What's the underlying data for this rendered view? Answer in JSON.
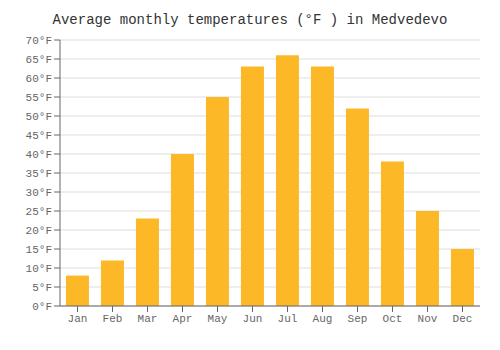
{
  "chart_data": {
    "type": "bar",
    "title": "Average monthly temperatures (°F ) in Medvedevo",
    "categories": [
      "Jan",
      "Feb",
      "Mar",
      "Apr",
      "May",
      "Jun",
      "Jul",
      "Aug",
      "Sep",
      "Oct",
      "Nov",
      "Dec"
    ],
    "values": [
      8,
      12,
      23,
      40,
      55,
      63,
      66,
      63,
      52,
      38,
      25,
      15
    ],
    "color": "#FDB827",
    "ylim": [
      0,
      70
    ],
    "yticks": [
      {
        "value": 0,
        "label": "0°F"
      },
      {
        "value": 5,
        "label": "5°F"
      },
      {
        "value": 10,
        "label": "10°F"
      },
      {
        "value": 15,
        "label": "15°F"
      },
      {
        "value": 20,
        "label": "20°F"
      },
      {
        "value": 25,
        "label": "25°F"
      },
      {
        "value": 30,
        "label": "30°F"
      },
      {
        "value": 35,
        "label": "35°F"
      },
      {
        "value": 40,
        "label": "40°F"
      },
      {
        "value": 45,
        "label": "45°F"
      },
      {
        "value": 50,
        "label": "50°F"
      },
      {
        "value": 55,
        "label": "55°F"
      },
      {
        "value": 60,
        "label": "60°F"
      },
      {
        "value": 65,
        "label": "65°F"
      },
      {
        "value": 70,
        "label": "70°F"
      }
    ],
    "grid": true
  }
}
